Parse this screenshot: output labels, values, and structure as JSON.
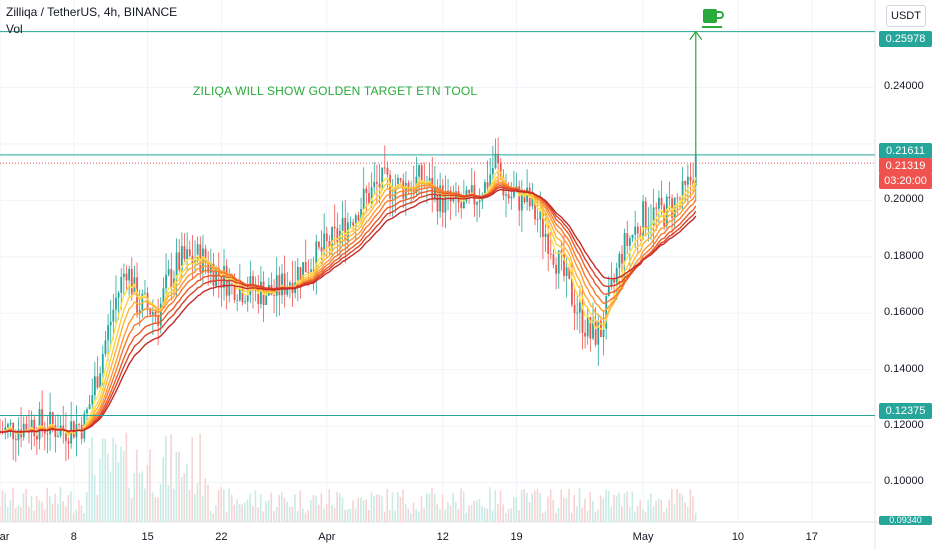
{
  "header": {
    "title": "Zilliqa / TetherUS, 4h, BINANCE",
    "volume_label": "Vol",
    "currency_button": "USDT"
  },
  "annotation": "ZILIQA WILL SHOW GOLDEN TARGET ETN TOOL",
  "price_tags": {
    "target": "0.25978",
    "resistance": "0.21611",
    "last_price": "0.21319",
    "countdown": "03:20:00",
    "support": "0.12375",
    "bottom_partial": "0.09340"
  },
  "colors": {
    "level_line": "#26a69a",
    "tag_green": "#26a69a",
    "tag_red": "#ef5350",
    "annotation": "#2aaa3a",
    "ribbon_fast": "#ffe24a",
    "ribbon_slow": "#c62828"
  },
  "icons": {
    "target_marker": "coffee-cup-icon"
  },
  "chart_data": {
    "type": "line",
    "title": "Zilliqa / TetherUS, 4h, BINANCE",
    "ylim": [
      0.086,
      0.271
    ],
    "y_ticks": [
      0.1,
      0.12,
      0.14,
      0.16,
      0.18,
      0.2,
      0.22,
      0.24
    ],
    "y_tick_labels": [
      "0.10000",
      "0.12000",
      "0.14000",
      "0.16000",
      "0.18000",
      "0.20000",
      "",
      "0.24000"
    ],
    "x_tick_labels": [
      "Mar",
      "8",
      "15",
      "22",
      "Apr",
      "12",
      "19",
      "May",
      "10",
      "17"
    ],
    "x_tick_days": [
      0,
      7,
      14,
      21,
      31,
      42,
      49,
      61,
      70,
      77
    ],
    "x_range_days": [
      0,
      83
    ],
    "series": [
      {
        "values": [
          {
            "day": 0,
            "price": 0.118
          },
          {
            "day": 3,
            "price": 0.121
          },
          {
            "day": 6,
            "price": 0.119
          },
          {
            "day": 8,
            "price": 0.121
          },
          {
            "day": 9,
            "price": 0.135
          },
          {
            "day": 10,
            "price": 0.15
          },
          {
            "day": 11,
            "price": 0.165
          },
          {
            "day": 12,
            "price": 0.177
          },
          {
            "day": 13,
            "price": 0.164
          },
          {
            "day": 15,
            "price": 0.16
          },
          {
            "day": 16,
            "price": 0.172
          },
          {
            "day": 17,
            "price": 0.178
          },
          {
            "day": 19,
            "price": 0.18
          },
          {
            "day": 21,
            "price": 0.173
          },
          {
            "day": 23,
            "price": 0.169
          },
          {
            "day": 26,
            "price": 0.167
          },
          {
            "day": 28,
            "price": 0.174
          },
          {
            "day": 30,
            "price": 0.18
          },
          {
            "day": 32,
            "price": 0.187
          },
          {
            "day": 34,
            "price": 0.198
          },
          {
            "day": 36,
            "price": 0.206
          },
          {
            "day": 38,
            "price": 0.205
          },
          {
            "day": 40,
            "price": 0.207
          },
          {
            "day": 42,
            "price": 0.2
          },
          {
            "day": 44,
            "price": 0.197
          },
          {
            "day": 46,
            "price": 0.205
          },
          {
            "day": 47,
            "price": 0.214
          },
          {
            "day": 48,
            "price": 0.202
          },
          {
            "day": 50,
            "price": 0.2
          },
          {
            "day": 52,
            "price": 0.187
          },
          {
            "day": 54,
            "price": 0.168
          },
          {
            "day": 56,
            "price": 0.152
          },
          {
            "day": 57,
            "price": 0.154
          },
          {
            "day": 58,
            "price": 0.167
          },
          {
            "day": 59,
            "price": 0.182
          },
          {
            "day": 61,
            "price": 0.194
          },
          {
            "day": 63,
            "price": 0.196
          },
          {
            "day": 65,
            "price": 0.202
          },
          {
            "day": 66,
            "price": 0.213
          }
        ]
      }
    ],
    "horizontal_levels": [
      0.25978,
      0.21611,
      0.12375
    ],
    "last_price_line": 0.21319,
    "target_arrow": {
      "day": 66,
      "from": 0.21611,
      "to": 0.25978
    },
    "legend": "none",
    "grid": true
  }
}
